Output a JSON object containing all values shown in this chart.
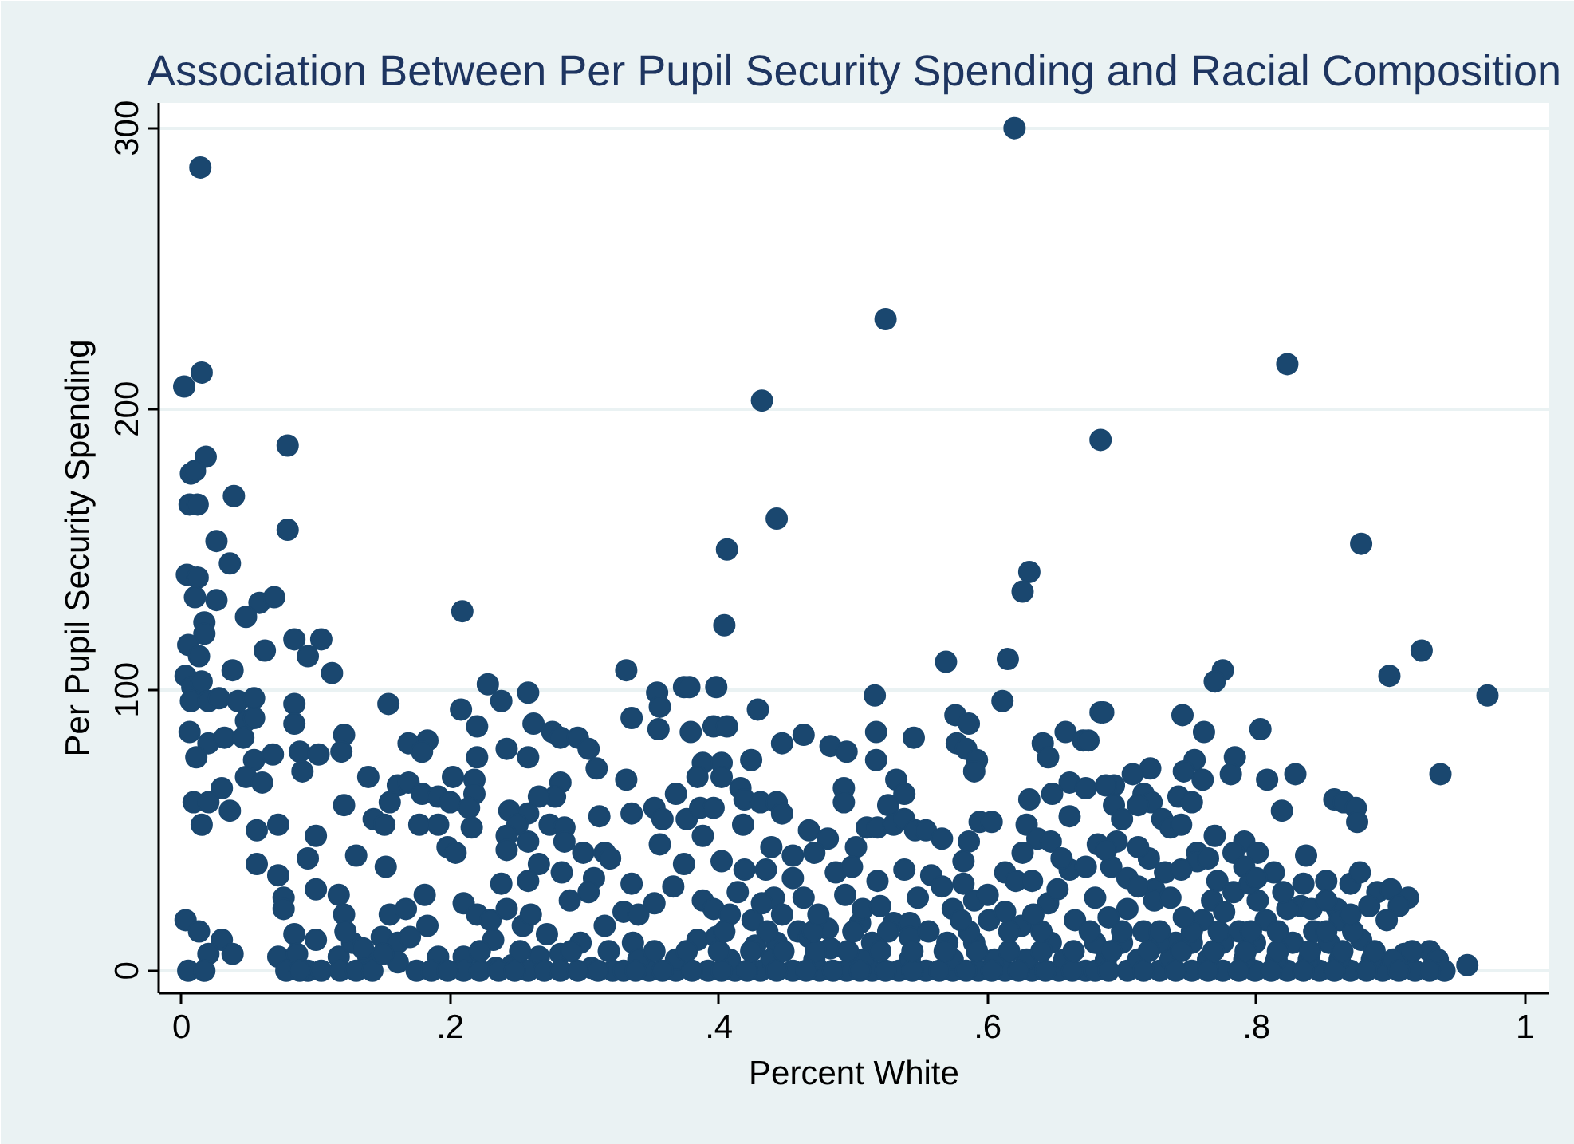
{
  "chart_data": {
    "type": "scatter",
    "title": "Association Between Per Pupil Security Spending and Racial Composition",
    "xlabel": "Percent White",
    "ylabel": "Per Pupil Security Spending",
    "xlim": [
      -0.017,
      1.018
    ],
    "ylim": [
      -8,
      309
    ],
    "xticks": [
      0,
      {
        "value": 0.2,
        "label": ".2"
      },
      {
        "value": 0.4,
        "label": ".4"
      },
      {
        "value": 0.6,
        "label": ".6"
      },
      {
        "value": 0.8,
        "label": ".8"
      },
      1
    ],
    "yticks": [
      0,
      100,
      200,
      300
    ],
    "grid": "y",
    "marker": "circle",
    "series": [
      {
        "color": "#1a476f",
        "x": [
          0.014,
          0.015,
          0.002,
          0.018,
          0.079,
          0.007,
          0.01,
          0.006,
          0.012,
          0.039,
          0.079,
          0.026,
          0.036,
          0.004,
          0.012,
          0.01,
          0.026,
          0.058,
          0.069,
          0.209,
          0.017,
          0.017,
          0.048,
          0.005,
          0.062,
          0.084,
          0.104,
          0.094,
          0.013,
          0.038,
          0.112,
          0.003,
          0.008,
          0.015,
          0.007,
          0.02,
          0.028,
          0.042,
          0.054,
          0.084,
          0.084,
          0.048,
          0.054,
          0.006,
          0.02,
          0.032,
          0.046,
          0.121,
          0.119,
          0.011,
          0.054,
          0.068,
          0.088,
          0.102,
          0.09,
          0.048,
          0.06,
          0.03,
          0.139,
          0.154,
          0.009,
          0.02,
          0.036,
          0.015,
          0.121,
          0.056,
          0.072,
          0.1,
          0.056,
          0.072,
          0.094,
          0.13,
          0.152,
          0.076,
          0.076,
          0.1,
          0.117,
          0.121,
          0.003,
          0.013,
          0.03,
          0.02,
          0.038,
          0.084,
          0.1,
          0.072,
          0.086,
          0.005,
          0.017,
          0.078,
          0.094,
          0.117,
          0.127,
          0.139,
          0.149,
          0.155,
          0.167,
          0.181,
          0.169,
          0.183,
          0.179,
          0.161,
          0.169,
          0.155,
          0.143,
          0.151,
          0.179,
          0.191,
          0.202,
          0.218,
          0.2,
          0.218,
          0.214,
          0.177,
          0.191,
          0.198,
          0.204,
          0.216,
          0.208,
          0.22,
          0.228,
          0.238,
          0.22,
          0.242,
          0.258,
          0.262,
          0.276,
          0.282,
          0.295,
          0.303,
          0.258,
          0.309,
          0.282,
          0.278,
          0.266,
          0.244,
          0.258,
          0.25,
          0.274,
          0.285,
          0.311,
          0.242,
          0.242,
          0.258,
          0.285,
          0.299,
          0.315,
          0.319,
          0.266,
          0.283,
          0.238,
          0.258,
          0.307,
          0.303,
          0.289,
          0.331,
          0.335,
          0.331,
          0.335,
          0.335,
          0.329,
          0.315,
          0.21,
          0.22,
          0.23,
          0.242,
          0.232,
          0.254,
          0.26,
          0.272,
          0.183,
          0.161,
          0.191,
          0.21,
          0.234,
          0.246,
          0.266,
          0.282,
          0.297,
          0.305,
          0.321,
          0.161,
          0.175,
          0.21,
          0.258,
          0.404,
          0.569,
          0.615,
          0.354,
          0.374,
          0.378,
          0.398,
          0.356,
          0.516,
          0.611,
          0.429,
          0.396,
          0.406,
          0.355,
          0.379,
          0.447,
          0.463,
          0.483,
          0.495,
          0.517,
          0.517,
          0.545,
          0.576,
          0.586,
          0.577,
          0.584,
          0.592,
          0.59,
          0.641,
          0.645,
          0.658,
          0.671,
          0.684,
          0.424,
          0.388,
          0.402,
          0.384,
          0.402,
          0.368,
          0.416,
          0.419,
          0.431,
          0.443,
          0.447,
          0.493,
          0.493,
          0.532,
          0.538,
          0.526,
          0.352,
          0.358,
          0.376,
          0.386,
          0.396,
          0.418,
          0.356,
          0.388,
          0.439,
          0.467,
          0.481,
          0.502,
          0.51,
          0.518,
          0.53,
          0.538,
          0.546,
          0.554,
          0.566,
          0.586,
          0.594,
          0.603,
          0.631,
          0.629,
          0.637,
          0.647,
          0.661,
          0.648,
          0.661,
          0.673,
          0.682,
          0.374,
          0.402,
          0.419,
          0.435,
          0.455,
          0.471,
          0.455,
          0.441,
          0.463,
          0.487,
          0.499,
          0.518,
          0.538,
          0.558,
          0.566,
          0.582,
          0.582,
          0.59,
          0.613,
          0.621,
          0.633,
          0.645,
          0.661,
          0.673,
          0.388,
          0.396,
          0.408,
          0.352,
          0.34,
          0.425,
          0.447,
          0.459,
          0.481,
          0.505,
          0.507,
          0.53,
          0.542,
          0.574,
          0.601,
          0.613,
          0.625,
          0.647,
          0.665,
          0.336,
          0.384,
          0.398,
          0.427,
          0.443,
          0.467,
          0.483,
          0.514,
          0.542,
          0.57,
          0.59,
          0.329,
          0.348,
          0.368,
          0.392,
          0.412,
          0.431,
          0.455,
          0.475,
          0.495,
          0.514,
          0.534,
          0.554,
          0.574,
          0.593,
          0.613,
          0.633,
          0.653,
          0.673,
          0.34,
          0.368,
          0.408,
          0.439,
          0.471,
          0.507,
          0.542,
          0.574,
          0.605,
          0.629,
          0.657,
          0.923,
          0.899,
          0.972,
          0.775,
          0.769,
          0.686,
          0.745,
          0.761,
          0.803,
          0.675,
          0.937,
          0.829,
          0.808,
          0.784,
          0.781,
          0.754,
          0.746,
          0.76,
          0.721,
          0.708,
          0.694,
          0.688,
          0.716,
          0.722,
          0.712,
          0.694,
          0.7,
          0.742,
          0.752,
          0.858,
          0.865,
          0.874,
          0.875,
          0.819,
          0.73,
          0.736,
          0.744,
          0.769,
          0.791,
          0.801,
          0.756,
          0.756,
          0.837,
          0.696,
          0.72,
          0.732,
          0.724,
          0.692,
          0.704,
          0.712,
          0.771,
          0.783,
          0.791,
          0.813,
          0.835,
          0.852,
          0.87,
          0.877,
          0.89,
          0.9,
          0.913,
          0.906,
          0.897,
          0.884,
          0.86,
          0.833,
          0.841,
          0.801,
          0.704,
          0.724,
          0.736,
          0.767,
          0.783,
          0.716,
          0.74,
          0.76,
          0.787,
          0.807,
          0.823,
          0.843,
          0.862,
          0.878,
          0.91,
          0.929,
          0.935,
          0.957,
          0.68,
          0.704,
          0.728,
          0.752,
          0.775,
          0.799,
          0.823,
          0.847,
          0.87,
          0.894,
          0.918,
          0.94,
          0.688,
          0.712,
          0.736,
          0.764,
          0.791,
          0.815,
          0.839,
          0.862,
          0.886,
          0.902,
          0.68,
          0.7,
          0.728,
          0.752,
          0.775,
          0.799,
          0.827,
          0.854,
          0.62,
          0.524,
          0.823,
          0.432,
          0.684,
          0.443,
          0.406,
          0.878,
          0.631,
          0.626,
          0.088,
          0.104,
          0.118,
          0.13,
          0.142,
          0.186,
          0.198,
          0.222,
          0.236,
          0.248,
          0.27,
          0.282,
          0.295,
          0.31,
          0.338,
          0.358,
          0.38,
          0.402,
          0.421,
          0.443,
          0.465,
          0.485,
          0.505,
          0.524,
          0.544,
          0.564,
          0.584,
          0.603,
          0.623,
          0.643,
          0.663,
          0.69,
          0.716,
          0.74,
          0.764,
          0.787,
          0.811,
          0.835,
          0.858,
          0.882,
          0.906,
          0.929,
          0.222,
          0.252,
          0.29,
          0.318,
          0.352,
          0.376,
          0.4,
          0.424,
          0.448,
          0.472,
          0.496,
          0.52,
          0.544,
          0.568,
          0.592,
          0.616,
          0.64,
          0.664,
          0.692,
          0.72,
          0.744,
          0.768,
          0.792,
          0.816,
          0.84,
          0.864,
          0.888,
          0.916,
          0.404,
          0.436,
          0.47,
          0.5,
          0.526,
          0.556,
          0.586,
          0.616,
          0.64,
          0.676,
          0.7,
          0.728,
          0.752,
          0.772,
          0.796,
          0.816,
          0.852,
          0.872,
          0.366,
          0.414,
          0.432,
          0.474,
          0.494,
          0.52,
          0.548,
          0.58,
          0.6,
          0.634,
          0.652,
          0.68,
          0.69,
          0.746,
          0.776,
          0.795,
          0.82,
          0.852,
          0.87,
          0.626,
          0.655,
          0.688,
          0.712,
          0.744,
          0.764,
          0.8,
          0.122,
          0.135,
          0.15,
          0.17
        ],
        "values": [
          286,
          213,
          208,
          183,
          187,
          177,
          178,
          166,
          166,
          169,
          157,
          153,
          145,
          141,
          140,
          133,
          132,
          131,
          133,
          128,
          124,
          120,
          126,
          116,
          114,
          118,
          118,
          112,
          112,
          107,
          106,
          105,
          101,
          103,
          96,
          96,
          97,
          96,
          97,
          95,
          88,
          89,
          90,
          85,
          81,
          83,
          83,
          84,
          78,
          76,
          75,
          77,
          78,
          77,
          71,
          69,
          67,
          65,
          69,
          95,
          60,
          60,
          57,
          52,
          59,
          50,
          52,
          48,
          38,
          34,
          40,
          41,
          37,
          26,
          22,
          29,
          27,
          20,
          18,
          14,
          11,
          6,
          6,
          13,
          11,
          5,
          6,
          0,
          0,
          0,
          0,
          5,
          10,
          5,
          12,
          20,
          22,
          27,
          81,
          82,
          78,
          66,
          67,
          60,
          54,
          52,
          63,
          62,
          69,
          68,
          60,
          63,
          58,
          52,
          52,
          44,
          42,
          51,
          93,
          87,
          102,
          96,
          76,
          79,
          99,
          88,
          85,
          83,
          83,
          79,
          76,
          72,
          67,
          62,
          62,
          57,
          56,
          52,
          52,
          51,
          55,
          48,
          43,
          46,
          46,
          42,
          42,
          40,
          38,
          35,
          31,
          32,
          33,
          28,
          25,
          107,
          90,
          68,
          56,
          31,
          21,
          16,
          24,
          20,
          18,
          22,
          11,
          16,
          20,
          13,
          16,
          10,
          5,
          5,
          1,
          2,
          5,
          6,
          10,
          1,
          0,
          3,
          0,
          0,
          0,
          123,
          110,
          111,
          99,
          101,
          101,
          101,
          94,
          98,
          96,
          93,
          87,
          87,
          86,
          85,
          81,
          84,
          80,
          78,
          85,
          75,
          83,
          91,
          88,
          81,
          79,
          75,
          71,
          81,
          76,
          85,
          82,
          92,
          75,
          74,
          74,
          69,
          69,
          63,
          65,
          61,
          60,
          60,
          56,
          65,
          60,
          68,
          63,
          59,
          58,
          54,
          54,
          58,
          58,
          52,
          45,
          48,
          44,
          50,
          47,
          44,
          51,
          51,
          52,
          54,
          50,
          50,
          47,
          46,
          53,
          53,
          61,
          52,
          47,
          46,
          55,
          63,
          67,
          65,
          45,
          38,
          39,
          36,
          36,
          41,
          42,
          33,
          26,
          26,
          35,
          37,
          32,
          36,
          34,
          30,
          39,
          31,
          25,
          35,
          32,
          32,
          24,
          36,
          37,
          25,
          22,
          20,
          24,
          20,
          18,
          20,
          14,
          15,
          17,
          22,
          17,
          17,
          22,
          18,
          21,
          16,
          10,
          18,
          10,
          11,
          12,
          9,
          10,
          12,
          8,
          10,
          12,
          10,
          10,
          0,
          0,
          0,
          0,
          0,
          0,
          0,
          0,
          0,
          0,
          0,
          0,
          0,
          0,
          0,
          0,
          0,
          0,
          4,
          4,
          4,
          4,
          4,
          4,
          4,
          4,
          4,
          4,
          4,
          114,
          105,
          98,
          107,
          103,
          92,
          91,
          85,
          86,
          82,
          70,
          70,
          68,
          76,
          70,
          75,
          71,
          68,
          72,
          70,
          66,
          66,
          63,
          60,
          59,
          59,
          54,
          62,
          60,
          61,
          60,
          58,
          53,
          57,
          54,
          51,
          52,
          48,
          46,
          42,
          42,
          39,
          41,
          46,
          40,
          35,
          29,
          37,
          33,
          30,
          32,
          42,
          37,
          35,
          31,
          32,
          31,
          35,
          28,
          29,
          26,
          23,
          18,
          23,
          22,
          23,
          22,
          25,
          22,
          25,
          26,
          25,
          28,
          14,
          10,
          18,
          14,
          18,
          22,
          14,
          18,
          11,
          6,
          7,
          4,
          2,
          0,
          0,
          0,
          0,
          0,
          0,
          0,
          0,
          0,
          0,
          0,
          0,
          4,
          4,
          4,
          4,
          4,
          4,
          4,
          4,
          4,
          4,
          10,
          10,
          10,
          10,
          10,
          10,
          10,
          10,
          300,
          232,
          216,
          203,
          189,
          161,
          150,
          152,
          142,
          135,
          0,
          0,
          0,
          0,
          0,
          0,
          0,
          0,
          0,
          0,
          0,
          0,
          0,
          0,
          0,
          0,
          0,
          0,
          0,
          0,
          0,
          0,
          0,
          0,
          0,
          0,
          0,
          0,
          0,
          0,
          0,
          0,
          0,
          0,
          0,
          0,
          0,
          0,
          0,
          0,
          0,
          0,
          7,
          7,
          7,
          7,
          7,
          7,
          7,
          7,
          7,
          7,
          7,
          7,
          7,
          7,
          7,
          7,
          7,
          7,
          7,
          7,
          7,
          7,
          7,
          7,
          7,
          7,
          7,
          7,
          14,
          14,
          14,
          14,
          14,
          14,
          14,
          14,
          14,
          14,
          14,
          14,
          14,
          14,
          14,
          14,
          14,
          14,
          30,
          28,
          24,
          20,
          27,
          23,
          26,
          18,
          27,
          20,
          29,
          26,
          19,
          19,
          21,
          31,
          28,
          25,
          20,
          42,
          40,
          43,
          44,
          36,
          40,
          33,
          14,
          8,
          6,
          12
        ]
      }
    ]
  }
}
